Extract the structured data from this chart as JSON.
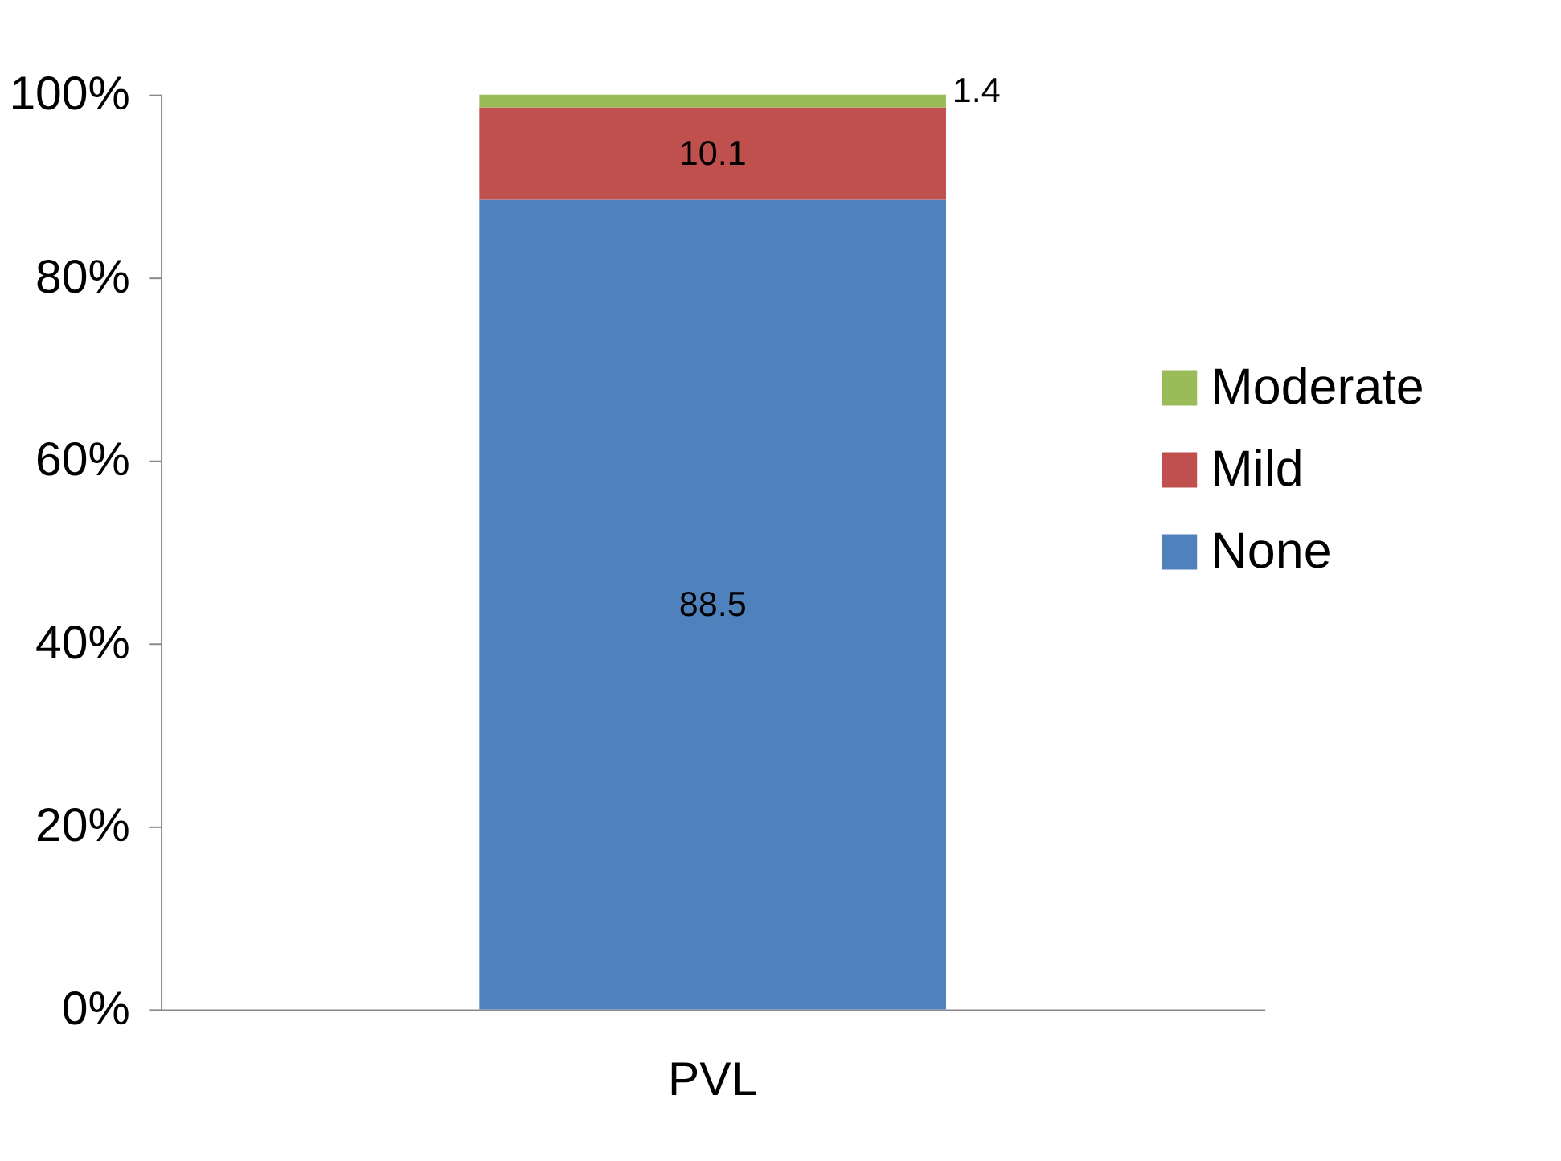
{
  "chart_data": {
    "type": "bar",
    "stacked": true,
    "categories": [
      "PVL"
    ],
    "series": [
      {
        "name": "None",
        "color": "#4f81bd",
        "values": [
          88.5
        ]
      },
      {
        "name": "Mild",
        "color": "#c0504d",
        "values": [
          10.1
        ]
      },
      {
        "name": "Moderate",
        "color": "#9bbb59",
        "values": [
          1.4
        ]
      }
    ],
    "ylim": [
      0,
      100
    ],
    "yticks": [
      {
        "value": 0,
        "label": "0%"
      },
      {
        "value": 20,
        "label": "20%"
      },
      {
        "value": 40,
        "label": "40%"
      },
      {
        "value": 60,
        "label": "60%"
      },
      {
        "value": 80,
        "label": "80%"
      },
      {
        "value": 100,
        "label": "100%"
      }
    ],
    "data_labels": true,
    "legend": "right",
    "grid": false
  }
}
